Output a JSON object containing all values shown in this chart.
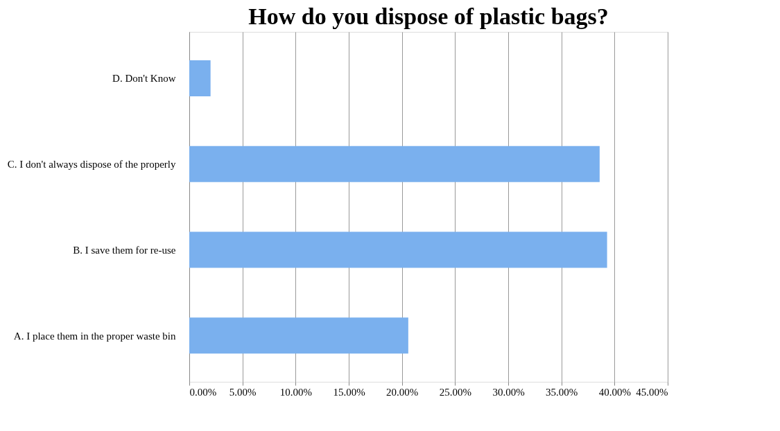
{
  "chart_data": {
    "type": "bar",
    "orientation": "horizontal",
    "title": "How do you dispose of plastic bags?",
    "categories": [
      "D. Don't Know",
      "C. I don't always dispose of the properly",
      "B. I save them for re-use",
      "A. I place them in the proper waste bin"
    ],
    "values": [
      2.0,
      38.6,
      39.3,
      20.6
    ],
    "color": "#7ab0ee",
    "xlim": [
      0,
      45
    ],
    "xticks": [
      {
        "value": 0,
        "label": "0.00%"
      },
      {
        "value": 5,
        "label": "5.00%"
      },
      {
        "value": 10,
        "label": "10.00%"
      },
      {
        "value": 15,
        "label": "15.00%"
      },
      {
        "value": 20,
        "label": "20.00%"
      },
      {
        "value": 25,
        "label": "25.00%"
      },
      {
        "value": 30,
        "label": "30.00%"
      },
      {
        "value": 35,
        "label": "35.00%"
      },
      {
        "value": 40,
        "label": "40.00%"
      },
      {
        "value": 45,
        "label": "45.00%"
      }
    ],
    "grid": "x"
  }
}
